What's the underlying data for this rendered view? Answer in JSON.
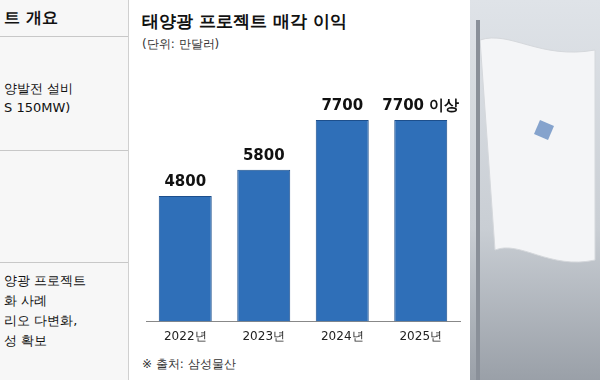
{
  "side_panel": {
    "title": "트 개요",
    "lines": [
      "양발전 설비",
      "S 150MW)",
      "양광 프로젝트",
      "화 사례",
      "리오 다변화,",
      "성 확보"
    ]
  },
  "chart_data": {
    "type": "bar",
    "title": "태양광 프로젝트 매각 이익",
    "subtitle": "(단위: 만달러)",
    "source": "※ 출처: 삼성물산",
    "categories": [
      "2022년",
      "2023년",
      "2024년",
      "2025년"
    ],
    "values": [
      4800,
      5800,
      7700,
      7700
    ],
    "value_labels": [
      "4800",
      "5800",
      "7700",
      "7700 이상"
    ],
    "color": "#2f6fb8",
    "ylim": [
      0,
      9000
    ],
    "yticks": [
      0,
      9000
    ],
    "grid": false,
    "data_labels": true,
    "tick_labels": "x"
  }
}
